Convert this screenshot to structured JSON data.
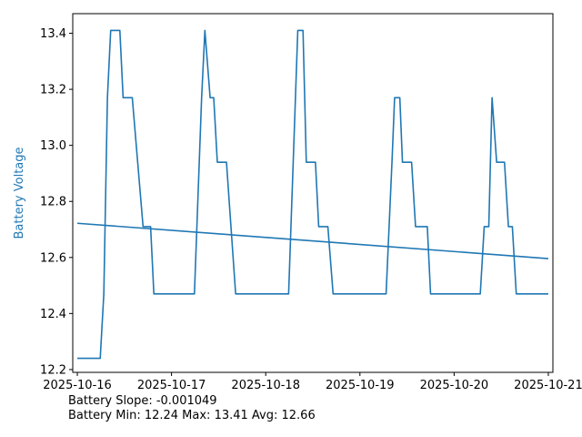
{
  "chart_data": {
    "type": "line",
    "xlabel": "",
    "ylabel": "Battery Voltage",
    "ylabel_color": "#1f77b4",
    "series_color": "#1f77b4",
    "x_type": "datetime",
    "xlim": [
      "2025-10-15 22:50",
      "2025-10-21 01:10"
    ],
    "ylim": [
      12.19,
      13.47
    ],
    "x_ticks": [
      "2025-10-16",
      "2025-10-17",
      "2025-10-18",
      "2025-10-19",
      "2025-10-20",
      "2025-10-21"
    ],
    "y_ticks": [
      12.2,
      12.4,
      12.6,
      12.8,
      13.0,
      13.2,
      13.4
    ],
    "y_tick_labels": [
      "12.2",
      "12.4",
      "12.6",
      "12.8",
      "13.0",
      "13.2",
      "13.4"
    ],
    "grid": false,
    "series": [
      {
        "kind": "voltage",
        "points": [
          [
            "2025-10-16 00:00",
            12.24
          ],
          [
            "2025-10-16 05:50",
            12.24
          ],
          [
            "2025-10-16 06:45",
            12.47
          ],
          [
            "2025-10-16 07:40",
            13.17
          ],
          [
            "2025-10-16 08:30",
            13.41
          ],
          [
            "2025-10-16 10:50",
            13.41
          ],
          [
            "2025-10-16 11:40",
            13.17
          ],
          [
            "2025-10-16 14:00",
            13.17
          ],
          [
            "2025-10-16 16:45",
            12.71
          ],
          [
            "2025-10-16 17:50",
            12.71
          ],
          [
            "2025-10-16 18:40",
            12.71
          ],
          [
            "2025-10-16 19:30",
            12.47
          ],
          [
            "2025-10-17 05:50",
            12.47
          ],
          [
            "2025-10-17 07:40",
            13.17
          ],
          [
            "2025-10-17 08:30",
            13.41
          ],
          [
            "2025-10-17 09:50",
            13.17
          ],
          [
            "2025-10-17 10:45",
            13.17
          ],
          [
            "2025-10-17 11:40",
            12.94
          ],
          [
            "2025-10-17 14:00",
            12.94
          ],
          [
            "2025-10-17 16:20",
            12.47
          ],
          [
            "2025-10-18 05:50",
            12.47
          ],
          [
            "2025-10-18 08:10",
            13.41
          ],
          [
            "2025-10-18 09:30",
            13.41
          ],
          [
            "2025-10-18 10:20",
            12.94
          ],
          [
            "2025-10-18 12:40",
            12.94
          ],
          [
            "2025-10-18 13:30",
            12.71
          ],
          [
            "2025-10-18 15:50",
            12.71
          ],
          [
            "2025-10-18 17:10",
            12.47
          ],
          [
            "2025-10-19 06:40",
            12.47
          ],
          [
            "2025-10-19 08:10",
            12.94
          ],
          [
            "2025-10-19 08:50",
            13.17
          ],
          [
            "2025-10-19 10:10",
            13.17
          ],
          [
            "2025-10-19 10:50",
            12.94
          ],
          [
            "2025-10-19 13:10",
            12.94
          ],
          [
            "2025-10-19 14:10",
            12.71
          ],
          [
            "2025-10-19 17:10",
            12.71
          ],
          [
            "2025-10-19 18:00",
            12.47
          ],
          [
            "2025-10-20 06:40",
            12.47
          ],
          [
            "2025-10-20 07:40",
            12.71
          ],
          [
            "2025-10-20 08:50",
            12.71
          ],
          [
            "2025-10-20 09:40",
            13.17
          ],
          [
            "2025-10-20 10:50",
            12.94
          ],
          [
            "2025-10-20 12:50",
            12.94
          ],
          [
            "2025-10-20 13:50",
            12.71
          ],
          [
            "2025-10-20 14:50",
            12.71
          ],
          [
            "2025-10-20 15:50",
            12.47
          ],
          [
            "2025-10-21 00:00",
            12.47
          ]
        ]
      },
      {
        "kind": "trend",
        "points": [
          [
            "2025-10-16 00:00",
            12.722
          ],
          [
            "2025-10-21 00:00",
            12.596
          ]
        ]
      }
    ]
  },
  "stats": {
    "slope_line": "Battery Slope: -0.001049",
    "range_line": "Battery Min: 12.24 Max: 13.41 Avg: 12.66"
  }
}
